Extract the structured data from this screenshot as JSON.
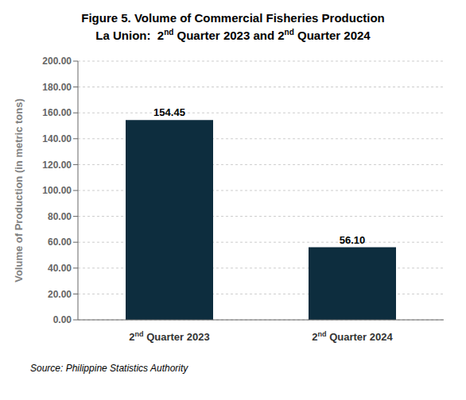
{
  "chart_data": {
    "type": "bar",
    "title": "Figure 5.  Volume of Commercial Fisheries Production",
    "subtitle": "La Union:  2nd Quarter 2023 and 2nd Quarter 2024",
    "categories": [
      "2nd Quarter 2023",
      "2nd Quarter 2024"
    ],
    "values": [
      154.45,
      56.1
    ],
    "value_labels": [
      "154.45",
      "56.10"
    ],
    "data_labels": true,
    "color": "#0d2d3e",
    "y_label": "Volume of Production (in metric tons)",
    "ylim": [
      0,
      200
    ],
    "yticks": [
      {
        "value": 0,
        "label": "0.00"
      },
      {
        "value": 20,
        "label": "20.00"
      },
      {
        "value": 40,
        "label": "40.00"
      },
      {
        "value": 60,
        "label": "60.00"
      },
      {
        "value": 80,
        "label": "80.00"
      },
      {
        "value": 100,
        "label": "100.00"
      },
      {
        "value": 120,
        "label": "120.00"
      },
      {
        "value": 140,
        "label": "140.00"
      },
      {
        "value": 160,
        "label": "160.00"
      },
      {
        "value": 180,
        "label": "180.00"
      },
      {
        "value": 200,
        "label": "200.00"
      }
    ],
    "grid": true,
    "source": "Source: Philippine Statistics Authority"
  }
}
